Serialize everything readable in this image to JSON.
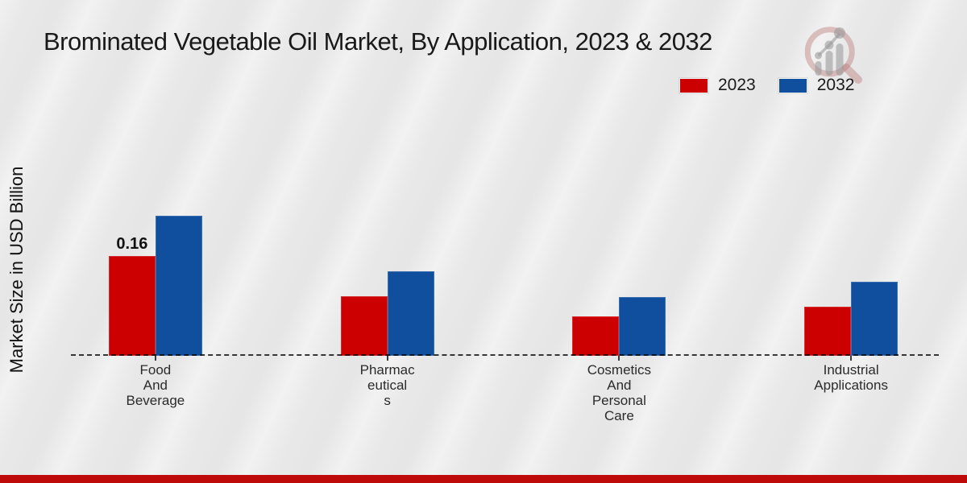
{
  "chart_data": {
    "type": "bar",
    "title": "Brominated Vegetable Oil Market, By Application, 2023 & 2032",
    "ylabel": "Market Size in USD Billion",
    "xlabel": "",
    "categories": [
      "Food And Beverage",
      "Pharmaceuticals",
      "Cosmetics And Personal Care",
      "Industrial Applications"
    ],
    "category_label_lines": [
      [
        "Food",
        "And",
        "Beverage"
      ],
      [
        "Pharmac",
        "eutical",
        "s"
      ],
      [
        "Cosmetics",
        "And",
        "Personal",
        "Care"
      ],
      [
        "Industrial",
        "Applications"
      ]
    ],
    "series": [
      {
        "name": "2023",
        "color": "#cc0000",
        "values": [
          0.16,
          0.095,
          0.063,
          0.079
        ],
        "data_labels": [
          "0.16",
          "",
          "",
          ""
        ]
      },
      {
        "name": "2032",
        "color": "#104f9e",
        "values": [
          0.224,
          0.135,
          0.094,
          0.119
        ],
        "data_labels": [
          "",
          "",
          "",
          ""
        ]
      }
    ],
    "ylim": [
      0,
      0.29
    ],
    "grid": false,
    "legend_position": "top-right",
    "baseline_style": "dashed",
    "accent_strip_color": "#bf0a0a",
    "background_color": "#e9e9e9"
  }
}
